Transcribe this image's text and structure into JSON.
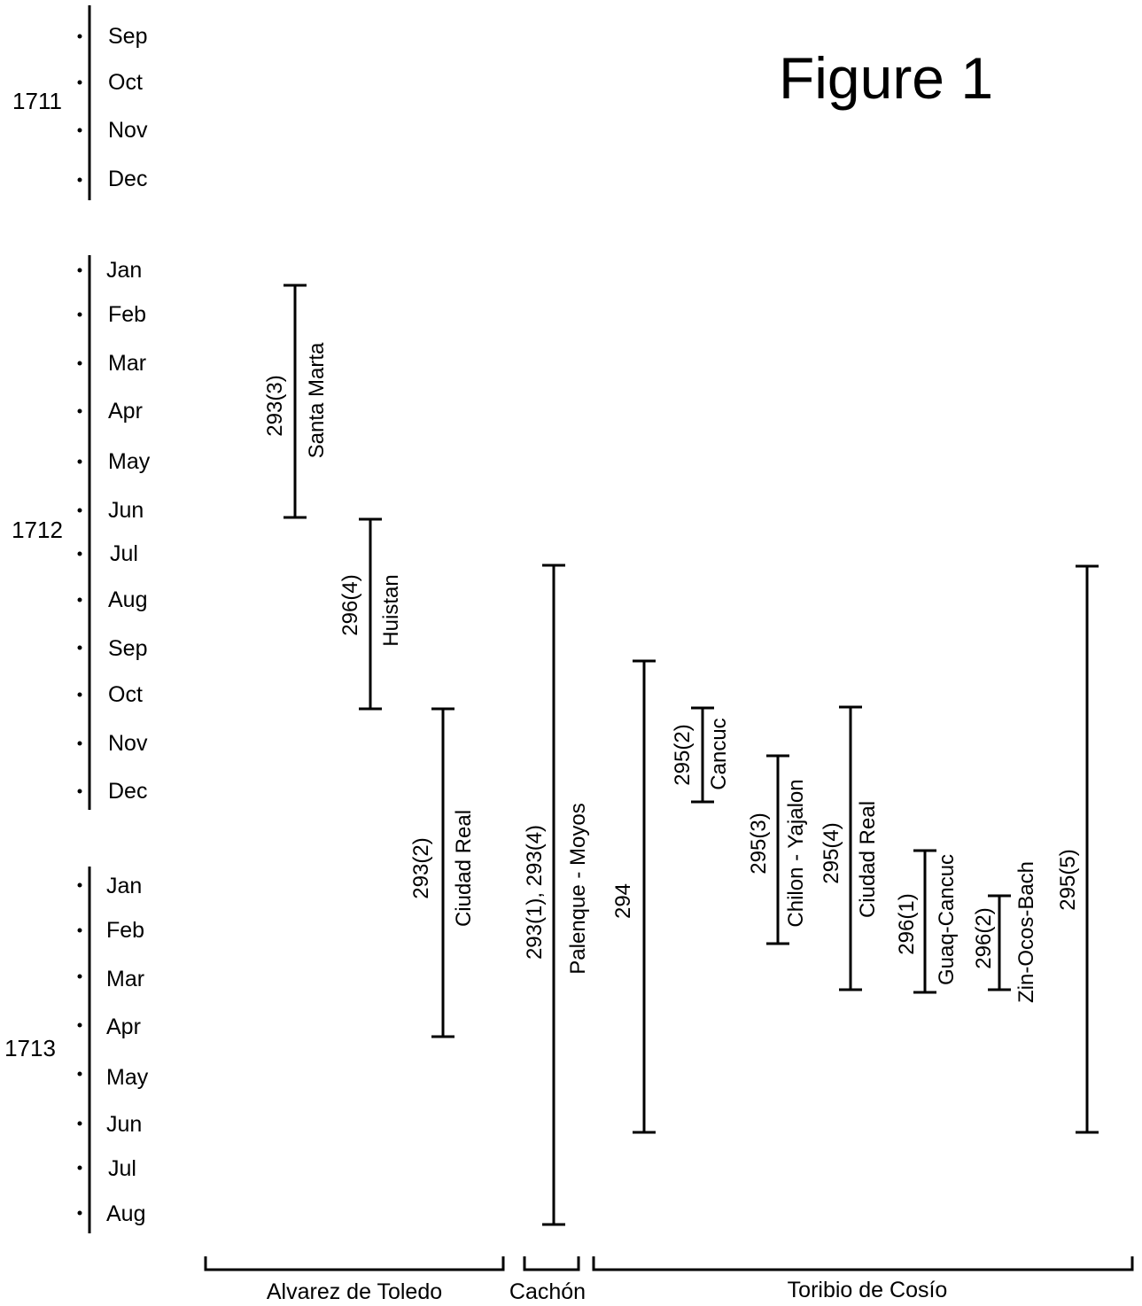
{
  "title": "Figure 1",
  "years": [
    {
      "label": "1711",
      "months": [
        "Sep",
        "Oct",
        "Nov",
        "Dec"
      ]
    },
    {
      "label": "1712",
      "months": [
        "Jan",
        "Feb",
        "Mar",
        "Apr",
        "May",
        "Jun",
        "Jul",
        "Aug",
        "Sep",
        "Oct",
        "Nov",
        "Dec"
      ]
    },
    {
      "label": "1713",
      "months": [
        "Jan",
        "Feb",
        "Mar",
        "Apr",
        "May",
        "Jun",
        "Jul",
        "Aug"
      ]
    }
  ],
  "intervals": [
    {
      "ref": "293(3)",
      "place": "Santa Marta",
      "start": "1712-Feb",
      "end": "1712-Jun",
      "group": "Alvarez de Toledo"
    },
    {
      "ref": "296(4)",
      "place": "Huistan",
      "start": "1712-Jun",
      "end": "1712-Oct",
      "group": "Alvarez de Toledo"
    },
    {
      "ref": "293(2)",
      "place": "Ciudad Real",
      "start": "1712-Oct",
      "end": "1713-Apr",
      "group": "Alvarez de Toledo"
    },
    {
      "ref": "293(1), 293(4)",
      "place": "Palenque - Moyos",
      "start": "1712-Jul",
      "end": "1713-Aug",
      "group": "Cachón"
    },
    {
      "ref": "294",
      "place": "",
      "start": "1712-Aug",
      "end": "1713-Jun",
      "group": "Toribio de Cosío"
    },
    {
      "ref": "295(2)",
      "place": "Cancuc",
      "start": "1712-Oct",
      "end": "1712-Dec",
      "group": "Toribio de Cosío"
    },
    {
      "ref": "295(3)",
      "place": "Chilon - Yajalon",
      "start": "1712-Nov",
      "end": "1713-Feb",
      "group": "Toribio de Cosío"
    },
    {
      "ref": "295(4)",
      "place": "Ciudad Real",
      "start": "1712-Oct",
      "end": "1713-Mar",
      "group": "Toribio de Cosío"
    },
    {
      "ref": "296(1)",
      "place": "Guaq-Cancuc",
      "start": "1713-Jan",
      "end": "1713-Mar",
      "group": "Toribio de Cosío"
    },
    {
      "ref": "296(2)",
      "place": "Zin-Ocos-Bach",
      "start": "1713-Feb",
      "end": "1713-Mar",
      "group": "Toribio de Cosío"
    },
    {
      "ref": "295(5)",
      "place": "",
      "start": "1712-Jul",
      "end": "1713-Jun",
      "group": "Toribio de Cosío"
    }
  ],
  "groups": [
    {
      "label": "Alvarez de Toledo"
    },
    {
      "label": "Cachón"
    },
    {
      "label": "Toribio de Cosío"
    }
  ]
}
